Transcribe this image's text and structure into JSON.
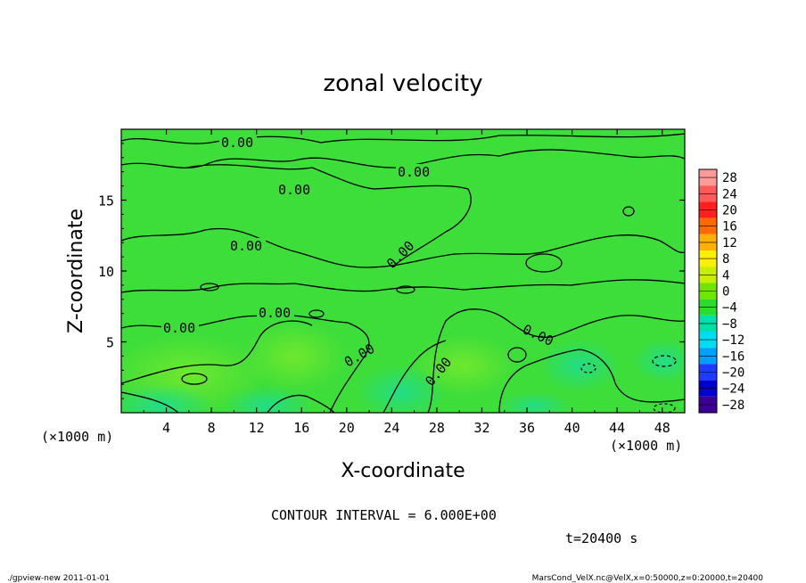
{
  "chart_data": {
    "type": "heatmap",
    "title": "zonal velocity",
    "xlabel": "X-coordinate",
    "ylabel": "Z-coordinate",
    "x_unit_left": "(×1000 m)",
    "x_unit_right": "(×1000 m)",
    "xlim": [
      0,
      50
    ],
    "ylim": [
      0,
      20
    ],
    "x_ticks": [
      "4",
      "8",
      "12",
      "16",
      "20",
      "24",
      "28",
      "32",
      "36",
      "40",
      "44",
      "48"
    ],
    "y_ticks": [
      "5",
      "10",
      "15"
    ],
    "colorbar": {
      "levels": [
        "28",
        "24",
        "20",
        "16",
        "12",
        "8",
        "4",
        "0",
        "−4",
        "−8",
        "−12",
        "−16",
        "−20",
        "−24",
        "−28"
      ],
      "colors": [
        "#ff9a9a",
        "#ff5a5a",
        "#ff1f1f",
        "#ff6a00",
        "#ffb000",
        "#ffef00",
        "#c8ef00",
        "#6ee600",
        "#2cdc2c",
        "#00e0a8",
        "#00dcf0",
        "#00a0ff",
        "#1e3cff",
        "#0000d0",
        "#3c0096"
      ]
    },
    "contour_labels": [
      "0.00",
      "0.00",
      "0.00",
      "0.00",
      "0.00",
      "0.00",
      "0.00",
      "0.00",
      "0.00",
      "0.00"
    ],
    "contour_interval": "CONTOUR INTERVAL = 6.000E+00",
    "time_label": "t=20400 s",
    "footer_left": "./gpview-new  2011-01-01",
    "footer_right": "MarsCond_VelX.nc@VelX,x=0:50000,z=0:20000,t=20400"
  },
  "colors": {
    "field_base": "#3ddd3a",
    "warm_patch": "#66e633",
    "cool_patch": "#22dd88"
  }
}
